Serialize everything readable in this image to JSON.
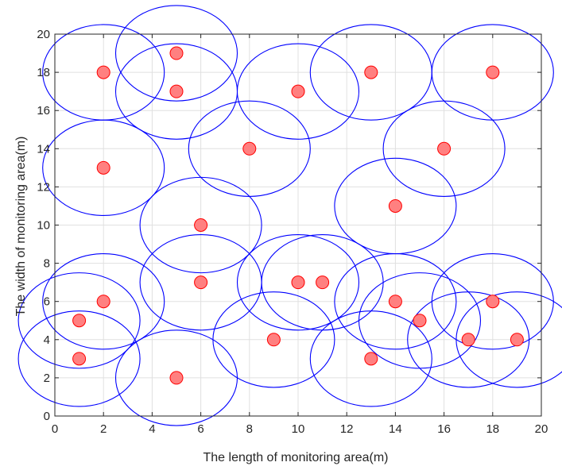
{
  "chart_data": {
    "type": "scatter",
    "title": "",
    "xlabel": "The length of monitoring area(m)",
    "ylabel": "The width of monitoring area(m)",
    "xlim": [
      0,
      20
    ],
    "ylim": [
      0,
      20
    ],
    "xticks": [
      0,
      2,
      4,
      6,
      8,
      10,
      12,
      14,
      16,
      18,
      20
    ],
    "yticks": [
      0,
      2,
      4,
      6,
      8,
      10,
      12,
      14,
      16,
      18,
      20
    ],
    "grid": true,
    "sensing_radius": 2.5,
    "colors": {
      "circle": "#0000ff",
      "node_fill": "#ff8080",
      "node_edge": "#ff0000",
      "grid": "#e0e0e0",
      "axis": "#262626"
    },
    "points": [
      {
        "x": 2,
        "y": 18
      },
      {
        "x": 5,
        "y": 19
      },
      {
        "x": 5,
        "y": 17
      },
      {
        "x": 10,
        "y": 17
      },
      {
        "x": 13,
        "y": 18
      },
      {
        "x": 18,
        "y": 18
      },
      {
        "x": 8,
        "y": 14
      },
      {
        "x": 16,
        "y": 14
      },
      {
        "x": 2,
        "y": 13
      },
      {
        "x": 14,
        "y": 11
      },
      {
        "x": 6,
        "y": 10
      },
      {
        "x": 6,
        "y": 7
      },
      {
        "x": 10,
        "y": 7
      },
      {
        "x": 11,
        "y": 7
      },
      {
        "x": 2,
        "y": 6
      },
      {
        "x": 14,
        "y": 6
      },
      {
        "x": 18,
        "y": 6
      },
      {
        "x": 1,
        "y": 5
      },
      {
        "x": 15,
        "y": 5
      },
      {
        "x": 9,
        "y": 4
      },
      {
        "x": 17,
        "y": 4
      },
      {
        "x": 19,
        "y": 4
      },
      {
        "x": 1,
        "y": 3
      },
      {
        "x": 13,
        "y": 3
      },
      {
        "x": 5,
        "y": 2
      }
    ]
  }
}
